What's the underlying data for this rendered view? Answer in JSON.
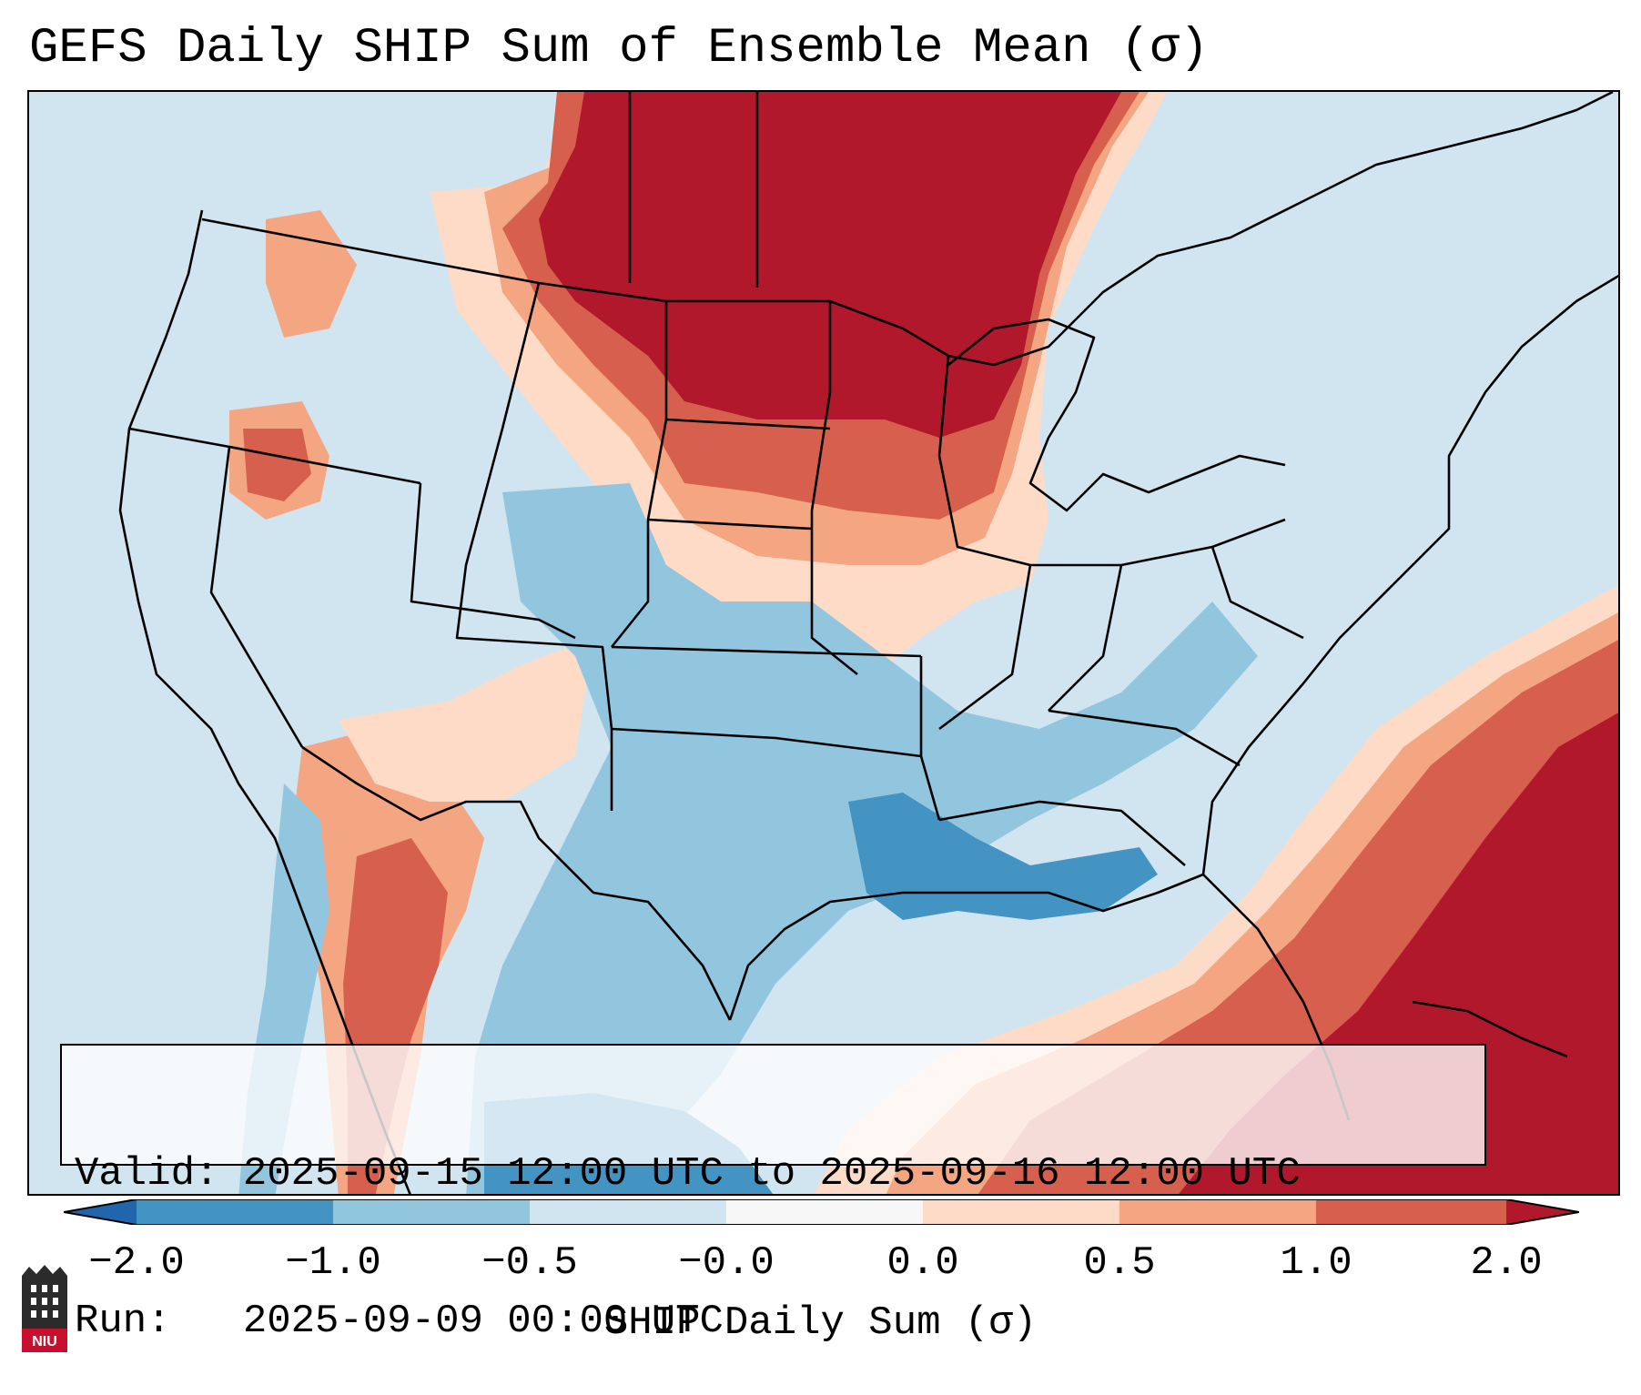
{
  "title": "GEFS Daily SHIP Sum of Ensemble Mean (σ)",
  "info": {
    "valid_line": "Valid: 2025-09-15 12:00 UTC to 2025-09-16 12:00 UTC",
    "run_line": "Run:   2025-09-09 00:00 UTC"
  },
  "colorbar": {
    "label": "SHIP Daily Sum (σ)",
    "ticks": [
      "−2.0",
      "−1.0",
      "−0.5",
      "−0.0",
      "0.0",
      "0.5",
      "1.0",
      "2.0"
    ],
    "colors": [
      "#2166ac",
      "#4393c3",
      "#92c5de",
      "#d1e5f0",
      "#f7f7f7",
      "#fddbc7",
      "#f4a582",
      "#d6604d",
      "#b2182b"
    ],
    "extend": "both"
  },
  "logo": {
    "text": "NIU"
  },
  "colors": {
    "strong_negative": "#4393c3",
    "negative": "#92c5de",
    "weak_negative": "#d1e5f0",
    "weak_positive": "#fddbc7",
    "positive": "#f4a582",
    "strong_positive": "#d6604d",
    "extreme_positive": "#b2182b"
  }
}
